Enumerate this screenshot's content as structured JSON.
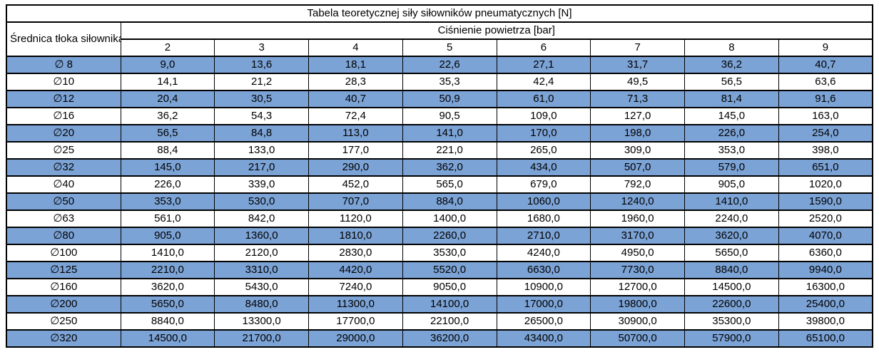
{
  "table": {
    "title": "Tabela teoretycznej siły siłowników pneumatycznych [N]",
    "row_header": "Średnica tłoka siłownika",
    "col_group_header": "Ciśnienie powietrza [bar]",
    "pressure_columns": [
      "2",
      "3",
      "4",
      "5",
      "6",
      "7",
      "8",
      "9"
    ],
    "rows": [
      {
        "diameter": "∅ 8",
        "values": [
          "9,0",
          "13,6",
          "18,1",
          "22,6",
          "27,1",
          "31,7",
          "36,2",
          "40,7"
        ]
      },
      {
        "diameter": "∅10",
        "values": [
          "14,1",
          "21,2",
          "28,3",
          "35,3",
          "42,4",
          "49,5",
          "56,5",
          "63,6"
        ]
      },
      {
        "diameter": "∅12",
        "values": [
          "20,4",
          "30,5",
          "40,7",
          "50,9",
          "61,0",
          "71,3",
          "81,4",
          "91,6"
        ]
      },
      {
        "diameter": "∅16",
        "values": [
          "36,2",
          "54,3",
          "72,4",
          "90,5",
          "109,0",
          "127,0",
          "145,0",
          "163,0"
        ]
      },
      {
        "diameter": "∅20",
        "values": [
          "56,5",
          "84,8",
          "113,0",
          "141,0",
          "170,0",
          "198,0",
          "226,0",
          "254,0"
        ]
      },
      {
        "diameter": "∅25",
        "values": [
          "88,4",
          "133,0",
          "177,0",
          "221,0",
          "265,0",
          "309,0",
          "353,0",
          "398,0"
        ]
      },
      {
        "diameter": "∅32",
        "values": [
          "145,0",
          "217,0",
          "290,0",
          "362,0",
          "434,0",
          "507,0",
          "579,0",
          "651,0"
        ]
      },
      {
        "diameter": "∅40",
        "values": [
          "226,0",
          "339,0",
          "452,0",
          "565,0",
          "679,0",
          "792,0",
          "905,0",
          "1020,0"
        ]
      },
      {
        "diameter": "∅50",
        "values": [
          "353,0",
          "530,0",
          "707,0",
          "884,0",
          "1060,0",
          "1240,0",
          "1410,0",
          "1590,0"
        ]
      },
      {
        "diameter": "∅63",
        "values": [
          "561,0",
          "842,0",
          "1120,0",
          "1400,0",
          "1680,0",
          "1960,0",
          "2240,0",
          "2520,0"
        ]
      },
      {
        "diameter": "∅80",
        "values": [
          "905,0",
          "1360,0",
          "1810,0",
          "2260,0",
          "2710,0",
          "3170,0",
          "3620,0",
          "4070,0"
        ]
      },
      {
        "diameter": "∅100",
        "values": [
          "1410,0",
          "2120,0",
          "2830,0",
          "3530,0",
          "4240,0",
          "4950,0",
          "5650,0",
          "6360,0"
        ]
      },
      {
        "diameter": "∅125",
        "values": [
          "2210,0",
          "3310,0",
          "4420,0",
          "5520,0",
          "6630,0",
          "7730,0",
          "8840,0",
          "9940,0"
        ]
      },
      {
        "diameter": "∅160",
        "values": [
          "3620,0",
          "5430,0",
          "7240,0",
          "9050,0",
          "10900,0",
          "12700,0",
          "14500,0",
          "16300,0"
        ]
      },
      {
        "diameter": "∅200",
        "values": [
          "5650,0",
          "8480,0",
          "11300,0",
          "14100,0",
          "17000,0",
          "19800,0",
          "22600,0",
          "25400,0"
        ]
      },
      {
        "diameter": "∅250",
        "values": [
          "8840,0",
          "13300,0",
          "17700,0",
          "22100,0",
          "26500,0",
          "30900,0",
          "35300,0",
          "39800,0"
        ]
      },
      {
        "diameter": "∅320",
        "values": [
          "14500,0",
          "21700,0",
          "29000,0",
          "36200,0",
          "43400,0",
          "50700,0",
          "57900,0",
          "65100,0"
        ]
      }
    ]
  },
  "colors": {
    "stripe_blue": "#7CA3D6",
    "stripe_white": "#FFFFFF",
    "border": "#000000",
    "header_divider_gray": "#7F7F7F",
    "text": "#000000"
  }
}
